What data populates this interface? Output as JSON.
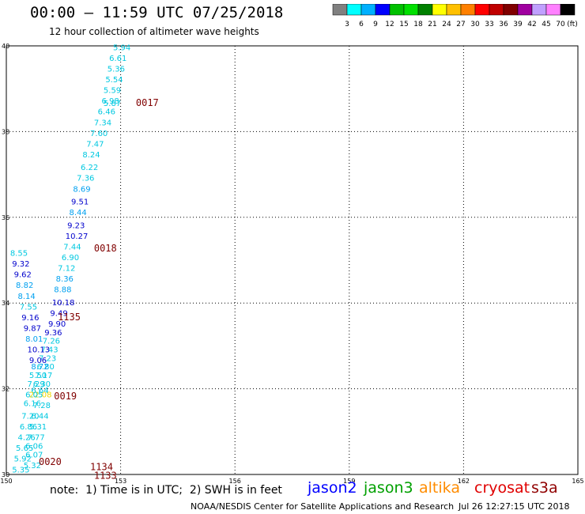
{
  "header": {
    "title": "00:00 – 11:59 UTC 07/25/2018",
    "subtitle": "12 hour collection of altimeter wave heights"
  },
  "legend": {
    "colors": [
      "#808080",
      "#00ffff",
      "#00b0ff",
      "#0000ff",
      "#00c000",
      "#00e000",
      "#008000",
      "#ffff00",
      "#ffc000",
      "#ff8000",
      "#ff0000",
      "#c00000",
      "#800000",
      "#a000a0",
      "#c0a0ff",
      "#ff80ff",
      "#000000"
    ],
    "labels": [
      "3",
      "6",
      "9",
      "12",
      "15",
      "18",
      "21",
      "24",
      "27",
      "30",
      "33",
      "36",
      "39",
      "42",
      "45",
      "70"
    ],
    "unit": "(ft)"
  },
  "chart_data": {
    "type": "scatter",
    "title": "00:00 – 11:59 UTC 07/25/2018",
    "xlim": [
      150,
      165
    ],
    "ylim": [
      30,
      40
    ],
    "xticks": [
      "150",
      "153",
      "156",
      "159",
      "162",
      "165"
    ],
    "yticks": [
      "30",
      "32",
      "34",
      "36",
      "38",
      "40"
    ],
    "grid": true,
    "points": [
      {
        "x": 152.8,
        "y": 39.9,
        "label": "5.94",
        "color": "#00c8e0"
      },
      {
        "x": 152.7,
        "y": 39.65,
        "label": "6.61",
        "color": "#00c8e0"
      },
      {
        "x": 152.65,
        "y": 39.4,
        "label": "5.36",
        "color": "#00c8e0"
      },
      {
        "x": 152.6,
        "y": 39.15,
        "label": "5.54",
        "color": "#00c8e0"
      },
      {
        "x": 152.55,
        "y": 38.9,
        "label": "5.59",
        "color": "#00c8e0"
      },
      {
        "x": 152.5,
        "y": 38.65,
        "label": "6.98",
        "color": "#00c8e0"
      },
      {
        "x": 152.55,
        "y": 38.6,
        "label": "5.87",
        "color": "#00c8e0"
      },
      {
        "x": 152.4,
        "y": 38.4,
        "label": "6.46",
        "color": "#00c8e0"
      },
      {
        "x": 152.3,
        "y": 38.15,
        "label": "7.34",
        "color": "#00c8e0"
      },
      {
        "x": 152.2,
        "y": 37.9,
        "label": "7.60",
        "color": "#00c8e0"
      },
      {
        "x": 152.1,
        "y": 37.65,
        "label": "7.47",
        "color": "#00c8e0"
      },
      {
        "x": 152.0,
        "y": 37.4,
        "label": "8.24",
        "color": "#00c8e0"
      },
      {
        "x": 151.95,
        "y": 37.1,
        "label": "6.22",
        "color": "#00c8e0"
      },
      {
        "x": 151.85,
        "y": 36.85,
        "label": "7.36",
        "color": "#00c8e0"
      },
      {
        "x": 151.75,
        "y": 36.6,
        "label": "8.69",
        "color": "#00a0f0"
      },
      {
        "x": 151.7,
        "y": 36.3,
        "label": "9.51",
        "color": "#0000cc"
      },
      {
        "x": 151.65,
        "y": 36.05,
        "label": "8.44",
        "color": "#00a0f0"
      },
      {
        "x": 151.6,
        "y": 35.75,
        "label": "9.23",
        "color": "#0000cc"
      },
      {
        "x": 151.55,
        "y": 35.5,
        "label": "10.27",
        "color": "#0000cc"
      },
      {
        "x": 151.5,
        "y": 35.25,
        "label": "7.44",
        "color": "#00c8e0"
      },
      {
        "x": 151.45,
        "y": 35.0,
        "label": "6.90",
        "color": "#00c8e0"
      },
      {
        "x": 151.35,
        "y": 34.75,
        "label": "7.12",
        "color": "#00c8e0"
      },
      {
        "x": 151.3,
        "y": 34.5,
        "label": "8.36",
        "color": "#00a0f0"
      },
      {
        "x": 151.25,
        "y": 34.25,
        "label": "8.88",
        "color": "#00a0f0"
      },
      {
        "x": 151.2,
        "y": 33.95,
        "label": "10.18",
        "color": "#0000cc"
      },
      {
        "x": 151.15,
        "y": 33.7,
        "label": "9.49",
        "color": "#0000cc"
      },
      {
        "x": 151.1,
        "y": 33.45,
        "label": "9.90",
        "color": "#0000cc"
      },
      {
        "x": 151.0,
        "y": 33.25,
        "label": "9.36",
        "color": "#0000cc"
      },
      {
        "x": 150.95,
        "y": 33.05,
        "label": "7.26",
        "color": "#00c8e0"
      },
      {
        "x": 150.9,
        "y": 32.85,
        "label": "7.43",
        "color": "#00c8e0"
      },
      {
        "x": 150.85,
        "y": 32.65,
        "label": "7.23",
        "color": "#00c8e0"
      },
      {
        "x": 150.8,
        "y": 32.45,
        "label": "6.80",
        "color": "#00c8e0"
      },
      {
        "x": 150.75,
        "y": 32.25,
        "label": "7.17",
        "color": "#00c8e0"
      },
      {
        "x": 150.7,
        "y": 32.05,
        "label": "6.30",
        "color": "#00c8e0"
      },
      {
        "x": 150.65,
        "y": 31.9,
        "label": "6.64",
        "color": "#00c8e0"
      },
      {
        "x": 150.6,
        "y": 31.8,
        "label": "22.08",
        "color": "#f0d800"
      },
      {
        "x": 150.7,
        "y": 31.55,
        "label": "7.28",
        "color": "#00c8e0"
      },
      {
        "x": 150.65,
        "y": 31.3,
        "label": "6.44",
        "color": "#00c8e0"
      },
      {
        "x": 150.6,
        "y": 31.05,
        "label": "5.31",
        "color": "#00c8e0"
      },
      {
        "x": 150.55,
        "y": 30.8,
        "label": "7.77",
        "color": "#00c8e0"
      },
      {
        "x": 150.5,
        "y": 30.6,
        "label": "6.06",
        "color": "#00c8e0"
      },
      {
        "x": 150.5,
        "y": 30.4,
        "label": "6.07",
        "color": "#00c8e0"
      },
      {
        "x": 150.45,
        "y": 30.15,
        "label": "5.32",
        "color": "#00c8e0"
      },
      {
        "x": 150.1,
        "y": 35.1,
        "label": "8.55",
        "color": "#00c8e0"
      },
      {
        "x": 150.15,
        "y": 34.85,
        "label": "9.32",
        "color": "#0000cc"
      },
      {
        "x": 150.2,
        "y": 34.6,
        "label": "9.62",
        "color": "#0000cc"
      },
      {
        "x": 150.25,
        "y": 34.35,
        "label": "8.82",
        "color": "#00a0f0"
      },
      {
        "x": 150.3,
        "y": 34.1,
        "label": "8.14",
        "color": "#00a0f0"
      },
      {
        "x": 150.35,
        "y": 33.85,
        "label": "7.55",
        "color": "#00c8e0"
      },
      {
        "x": 150.4,
        "y": 33.6,
        "label": "9.16",
        "color": "#0000cc"
      },
      {
        "x": 150.45,
        "y": 33.35,
        "label": "9.87",
        "color": "#0000cc"
      },
      {
        "x": 150.5,
        "y": 33.1,
        "label": "8.01",
        "color": "#00a0f0"
      },
      {
        "x": 150.55,
        "y": 32.85,
        "label": "10.13",
        "color": "#0000cc"
      },
      {
        "x": 150.6,
        "y": 32.6,
        "label": "9.06",
        "color": "#0000cc"
      },
      {
        "x": 150.65,
        "y": 32.45,
        "label": "8.72",
        "color": "#00a0f0"
      },
      {
        "x": 150.6,
        "y": 32.25,
        "label": "5.50",
        "color": "#00c8e0"
      },
      {
        "x": 150.55,
        "y": 32.05,
        "label": "7.29",
        "color": "#00c8e0"
      },
      {
        "x": 150.5,
        "y": 31.8,
        "label": "6.05",
        "color": "#00c8e0"
      },
      {
        "x": 150.45,
        "y": 31.6,
        "label": "6.16",
        "color": "#00c8e0"
      },
      {
        "x": 150.4,
        "y": 31.3,
        "label": "7.20",
        "color": "#00c8e0"
      },
      {
        "x": 150.35,
        "y": 31.05,
        "label": "6.86",
        "color": "#00c8e0"
      },
      {
        "x": 150.3,
        "y": 30.8,
        "label": "4.26",
        "color": "#00c8e0"
      },
      {
        "x": 150.25,
        "y": 30.55,
        "label": "5.65",
        "color": "#00c8e0"
      },
      {
        "x": 150.2,
        "y": 30.3,
        "label": "5.92",
        "color": "#00c8e0"
      },
      {
        "x": 150.15,
        "y": 30.05,
        "label": "5.35",
        "color": "#00c8e0"
      }
    ],
    "time_labels": [
      {
        "x": 153.4,
        "y": 38.6,
        "label": "0017",
        "color": "#800000"
      },
      {
        "x": 152.3,
        "y": 35.2,
        "label": "0018",
        "color": "#800000"
      },
      {
        "x": 151.35,
        "y": 33.6,
        "label": "1135",
        "color": "#800000"
      },
      {
        "x": 151.25,
        "y": 31.75,
        "label": "0019",
        "color": "#800000"
      },
      {
        "x": 150.85,
        "y": 30.22,
        "label": "0020",
        "color": "#800000"
      },
      {
        "x": 152.2,
        "y": 30.1,
        "label": "1134",
        "color": "#800000"
      },
      {
        "x": 152.3,
        "y": 29.9,
        "label": "1133",
        "color": "#800000"
      }
    ]
  },
  "footer": {
    "note": "note:  1) Time is in UTC;  2) SWH is in feet",
    "missions": [
      {
        "name": "jason2",
        "color": "#0000ff"
      },
      {
        "name": "jason3",
        "color": "#00a000"
      },
      {
        "name": "altika",
        "color": "#ff8c00"
      },
      {
        "name": "cryosat",
        "color": "#e00000"
      },
      {
        "name": "s3a",
        "color": "#900000"
      }
    ],
    "credit": "NOAA/NESDIS Center for Satellite Applications and Research",
    "timestamp": "Jul 26 12:27:15 UTC 2018"
  }
}
